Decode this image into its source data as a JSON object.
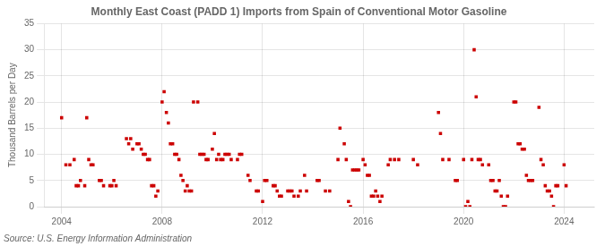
{
  "chart_data": {
    "type": "scatter",
    "title": "Monthly East Coast (PADD 1) Imports from Spain of Conventional Motor Gasoline",
    "y_label": "Thousand Barrels per Day",
    "annotations": [
      "Source: U.S. Energy Information Administration"
    ],
    "color": "#cc0000",
    "marker": "square",
    "grid": true,
    "xlim": [
      2003.3,
      2025.2
    ],
    "xticks": [
      2004,
      2008,
      2012,
      2016,
      2020,
      2024
    ],
    "ylim": [
      0,
      35
    ],
    "yticks": [
      0,
      5,
      10,
      15,
      20,
      25,
      30,
      35
    ],
    "x": [
      2004.0,
      2004.17,
      2004.33,
      2004.5,
      2004.58,
      2004.67,
      2004.75,
      2004.92,
      2005.0,
      2005.08,
      2005.17,
      2005.25,
      2005.5,
      2005.58,
      2005.67,
      2005.92,
      2006.0,
      2006.08,
      2006.17,
      2006.58,
      2006.67,
      2006.75,
      2006.83,
      2007.0,
      2007.08,
      2007.17,
      2007.25,
      2007.33,
      2007.42,
      2007.5,
      2007.58,
      2007.67,
      2007.75,
      2007.83,
      2008.0,
      2008.08,
      2008.17,
      2008.25,
      2008.33,
      2008.42,
      2008.5,
      2008.58,
      2008.67,
      2008.75,
      2008.83,
      2008.92,
      2009.0,
      2009.08,
      2009.17,
      2009.25,
      2009.42,
      2009.5,
      2009.58,
      2009.67,
      2009.75,
      2009.83,
      2010.0,
      2010.08,
      2010.17,
      2010.25,
      2010.33,
      2010.42,
      2010.5,
      2010.58,
      2010.67,
      2010.75,
      2011.0,
      2011.08,
      2011.17,
      2011.42,
      2011.5,
      2011.75,
      2011.83,
      2012.0,
      2012.08,
      2012.17,
      2012.42,
      2012.5,
      2012.58,
      2012.67,
      2012.75,
      2013.0,
      2013.08,
      2013.17,
      2013.25,
      2013.42,
      2013.5,
      2013.67,
      2013.75,
      2014.17,
      2014.25,
      2014.5,
      2014.67,
      2015.0,
      2015.08,
      2015.25,
      2015.33,
      2015.42,
      2015.5,
      2015.58,
      2015.67,
      2015.75,
      2015.83,
      2016.0,
      2016.08,
      2016.17,
      2016.25,
      2016.33,
      2016.42,
      2016.5,
      2016.58,
      2016.67,
      2016.75,
      2017.0,
      2017.08,
      2017.25,
      2017.42,
      2018.0,
      2018.17,
      2019.0,
      2019.08,
      2019.17,
      2019.42,
      2019.67,
      2019.75,
      2020.0,
      2020.08,
      2020.17,
      2020.25,
      2020.33,
      2020.42,
      2020.5,
      2020.58,
      2020.67,
      2020.75,
      2021.0,
      2021.08,
      2021.17,
      2021.25,
      2021.33,
      2021.42,
      2021.5,
      2021.58,
      2021.67,
      2021.75,
      2022.0,
      2022.08,
      2022.17,
      2022.25,
      2022.33,
      2022.42,
      2022.5,
      2022.58,
      2022.67,
      2022.75,
      2023.0,
      2023.08,
      2023.17,
      2023.25,
      2023.33,
      2023.42,
      2023.5,
      2023.58,
      2023.67,
      2023.75,
      2024.0,
      2024.08
    ],
    "values": [
      17,
      8,
      8,
      9,
      4,
      4,
      5,
      4,
      17,
      9,
      8,
      8,
      5,
      5,
      4,
      4,
      4,
      5,
      4,
      13,
      12,
      13,
      11,
      12,
      12,
      11,
      10,
      10,
      9,
      9,
      4,
      4,
      2,
      3,
      20,
      22,
      18,
      16,
      12,
      12,
      10,
      10,
      9,
      6,
      5,
      3,
      4,
      3,
      3,
      20,
      20,
      10,
      10,
      10,
      9,
      9,
      11,
      14,
      9,
      10,
      9,
      9,
      10,
      10,
      10,
      9,
      9,
      10,
      10,
      6,
      5,
      3,
      3,
      1,
      5,
      5,
      4,
      4,
      3,
      2,
      2,
      3,
      3,
      3,
      2,
      2,
      3,
      6,
      3,
      5,
      5,
      3,
      3,
      9,
      15,
      12,
      9,
      1,
      0,
      7,
      7,
      7,
      7,
      9,
      8,
      6,
      6,
      2,
      2,
      3,
      2,
      1,
      2,
      8,
      9,
      9,
      9,
      9,
      8,
      18,
      14,
      9,
      9,
      5,
      5,
      9,
      0,
      1,
      0,
      9,
      30,
      21,
      9,
      9,
      8,
      8,
      5,
      5,
      3,
      3,
      5,
      2,
      0,
      0,
      2,
      20,
      20,
      12,
      12,
      11,
      11,
      6,
      5,
      5,
      5,
      19,
      9,
      8,
      4,
      3,
      3,
      2,
      0,
      4,
      4,
      8,
      4
    ]
  }
}
